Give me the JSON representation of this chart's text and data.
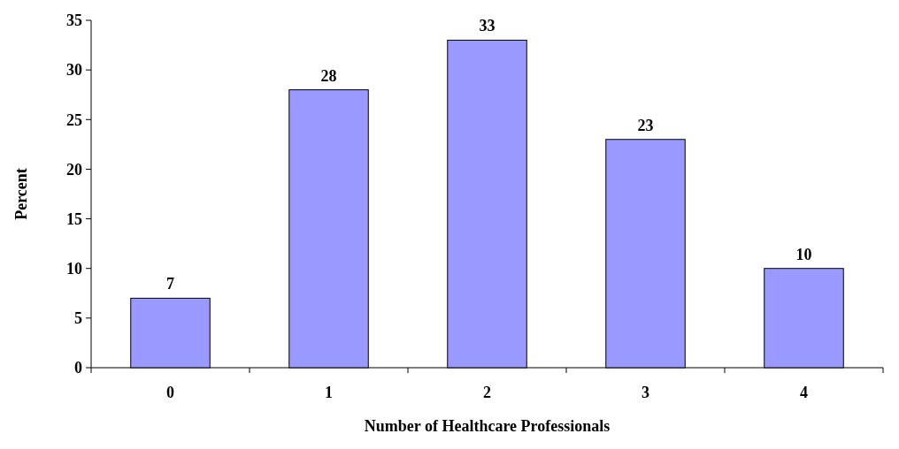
{
  "chart_data": {
    "type": "bar",
    "xlabel": "Number of Healthcare Professionals",
    "ylabel": "Percent",
    "categories": [
      "0",
      "1",
      "2",
      "3",
      "4"
    ],
    "values": [
      7,
      28,
      33,
      23,
      10
    ],
    "color": "#9999ff",
    "ylim": [
      0,
      35
    ],
    "yticks": [
      0,
      5,
      10,
      15,
      20,
      25,
      30,
      35
    ],
    "grid": false,
    "data_labels": true
  }
}
